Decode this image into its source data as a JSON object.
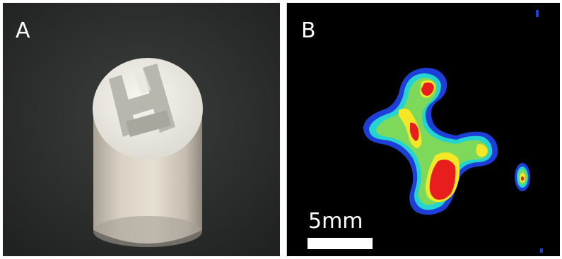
{
  "panels": [
    {
      "label": "A"
    },
    {
      "label": "B",
      "scale_bar": {
        "text": "5mm"
      }
    }
  ],
  "colors": {
    "photo_background": "#2a2d2c",
    "heatmap_background": "#000000",
    "heat_low": "#1d3fd8",
    "heat_mid_low": "#24d4d0",
    "heat_mid": "#7ed85a",
    "heat_high": "#f4e826",
    "heat_peak": "#e81e1e"
  },
  "objects": {
    "photo_subject": "white-cylinder-phantom",
    "heatmap_subject": "h-shaped-activity-distribution"
  }
}
